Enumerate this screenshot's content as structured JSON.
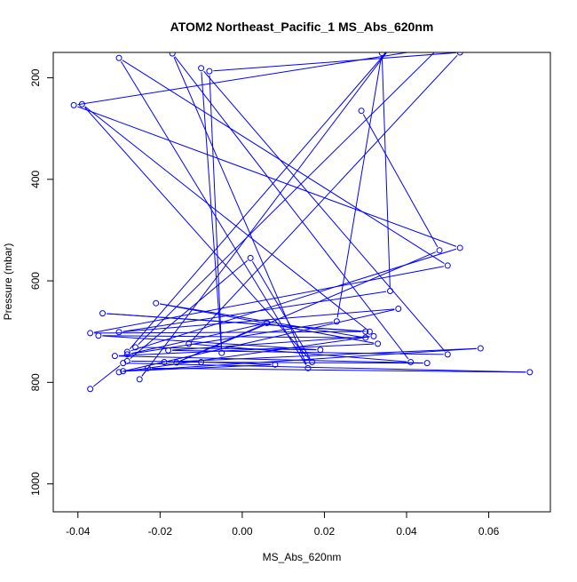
{
  "chart_data": {
    "type": "line",
    "title": "ATOM2 Northeast_Pacific_1 MS_Abs_620nm",
    "xlabel": "MS_Abs_620nm",
    "ylabel": "Pressure (mbar)",
    "xlim": [
      -0.046,
      0.075
    ],
    "ylim": [
      1055,
      150
    ],
    "y_reversed": true,
    "xticks": [
      -0.04,
      -0.02,
      0.0,
      0.02,
      0.04,
      0.06
    ],
    "xtick_labels": [
      "-0.04",
      "-0.02",
      "0.00",
      "0.02",
      "0.04",
      "0.06"
    ],
    "yticks": [
      200,
      400,
      600,
      800,
      1000
    ],
    "ytick_labels": [
      "200",
      "400",
      "600",
      "800",
      "1000"
    ],
    "grid": false,
    "series_color": "#0000ff",
    "series": [
      {
        "points": [
          [
            -0.037,
            813
          ],
          [
            -0.029,
            762
          ],
          [
            0.07,
            780
          ],
          [
            -0.023,
            772
          ],
          [
            -0.025,
            794
          ],
          [
            0.036,
            141
          ],
          [
            -0.028,
            740
          ],
          [
            0.053,
            535
          ],
          [
            -0.041,
            254
          ],
          [
            0.048,
            140
          ],
          [
            -0.026,
            731
          ],
          [
            0.019,
            736
          ],
          [
            -0.035,
            708
          ],
          [
            0.03,
            712
          ],
          [
            -0.021,
            644
          ],
          [
            0.033,
            724
          ],
          [
            -0.031,
            748
          ],
          [
            0.045,
            762
          ],
          [
            -0.019,
            760
          ],
          [
            0.058,
            733
          ],
          [
            -0.029,
            778
          ],
          [
            0.008,
            765
          ],
          [
            -0.01,
            760
          ],
          [
            -0.028,
            758
          ],
          [
            0.002,
            555
          ],
          [
            0.017,
            760
          ],
          [
            -0.039,
            252
          ],
          [
            0.031,
            700
          ],
          [
            -0.034,
            664
          ],
          [
            0.03,
            700
          ],
          [
            -0.037,
            703
          ],
          [
            0.05,
            570
          ],
          [
            -0.03,
            161
          ],
          [
            0.016,
            772
          ],
          [
            -0.017,
            152
          ],
          [
            0.041,
            760
          ],
          [
            -0.013,
            724
          ],
          [
            0.053,
            150
          ],
          [
            -0.008,
            187
          ],
          [
            -0.005,
            742
          ],
          [
            -0.01,
            181
          ],
          [
            0.05,
            745
          ],
          [
            -0.018,
            737
          ],
          [
            0.032,
            709
          ],
          [
            -0.03,
            780
          ],
          [
            0.038,
            655
          ],
          [
            -0.03,
            701
          ],
          [
            0.036,
            620
          ],
          [
            0.034,
            151
          ],
          [
            0.023,
            680
          ],
          [
            -0.028,
            745
          ],
          [
            0.006,
            683
          ],
          [
            -0.016,
            761
          ],
          [
            0.048,
            540
          ],
          [
            0.029,
            265
          ]
        ]
      }
    ]
  }
}
